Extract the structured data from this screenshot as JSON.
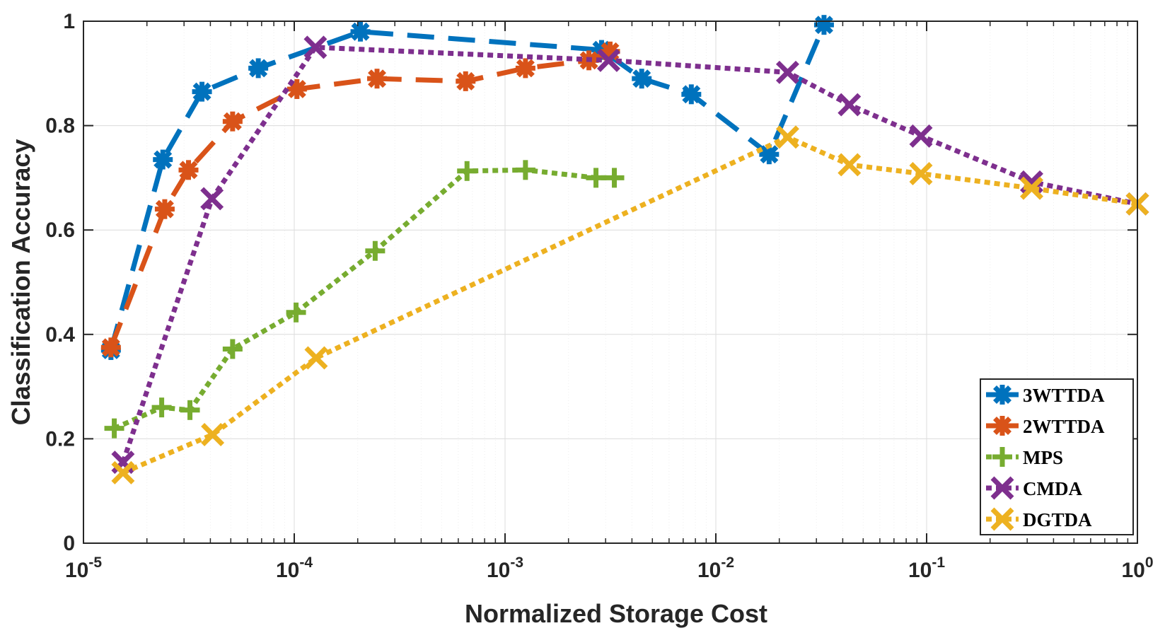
{
  "chart_data": {
    "type": "line",
    "title": "",
    "xlabel": "Normalized Storage Cost",
    "ylabel": "Classification Accuracy",
    "xscale": "log",
    "xlim": [
      1e-05,
      1
    ],
    "ylim": [
      0,
      1
    ],
    "grid": true,
    "legend_position": "bottom-right",
    "x_ticks": [
      {
        "base": "10",
        "exp": "-5"
      },
      {
        "base": "10",
        "exp": "-4"
      },
      {
        "base": "10",
        "exp": "-3"
      },
      {
        "base": "10",
        "exp": "-2"
      },
      {
        "base": "10",
        "exp": "-1"
      },
      {
        "base": "10",
        "exp": "0"
      }
    ],
    "y_ticks": [
      "0",
      "0.2",
      "0.4",
      "0.6",
      "0.8",
      "1"
    ],
    "series": [
      {
        "name": "3WTTDA",
        "color": "#0072BD",
        "line_style": "dashed",
        "marker": "asterisk",
        "x": [
          1.35e-05,
          2.38e-05,
          3.65e-05,
          6.75e-05,
          0.000206,
          0.00287,
          0.00445,
          0.00765,
          0.0179,
          0.0326
        ],
        "y": [
          0.37,
          0.735,
          0.865,
          0.91,
          0.98,
          0.945,
          0.89,
          0.86,
          0.745,
          0.993
        ]
      },
      {
        "name": "2WTTDA",
        "color": "#D95319",
        "line_style": "dashed",
        "marker": "asterisk",
        "x": [
          1.35e-05,
          2.43e-05,
          3.15e-05,
          5.1e-05,
          0.000103,
          0.000247,
          0.00065,
          0.00125,
          0.0025,
          0.00315
        ],
        "y": [
          0.375,
          0.64,
          0.715,
          0.808,
          0.87,
          0.89,
          0.885,
          0.91,
          0.925,
          0.942
        ]
      },
      {
        "name": "MPS",
        "color": "#77AC30",
        "line_style": "dotted",
        "marker": "plus",
        "x": [
          1.4e-05,
          2.35e-05,
          3.2e-05,
          5.1e-05,
          0.000102,
          0.000242,
          0.00066,
          0.00125,
          0.0027,
          0.0033
        ],
        "y": [
          0.22,
          0.26,
          0.255,
          0.372,
          0.442,
          0.56,
          0.713,
          0.715,
          0.7,
          0.7
        ]
      },
      {
        "name": "CMDA",
        "color": "#7E2F8E",
        "line_style": "dotted",
        "marker": "x",
        "x": [
          1.54e-05,
          4.07e-05,
          0.000126,
          0.0031,
          0.0219,
          0.043,
          0.094,
          0.315,
          1
        ],
        "y": [
          0.155,
          0.66,
          0.95,
          0.925,
          0.902,
          0.84,
          0.78,
          0.692,
          0.65
        ]
      },
      {
        "name": "DGTDA",
        "color": "#EDB120",
        "line_style": "dotted",
        "marker": "x",
        "x": [
          1.54e-05,
          4.1e-05,
          0.000127,
          0.0219,
          0.043,
          0.094,
          0.315,
          1
        ],
        "y": [
          0.135,
          0.208,
          0.355,
          0.778,
          0.725,
          0.708,
          0.68,
          0.65
        ]
      }
    ]
  }
}
